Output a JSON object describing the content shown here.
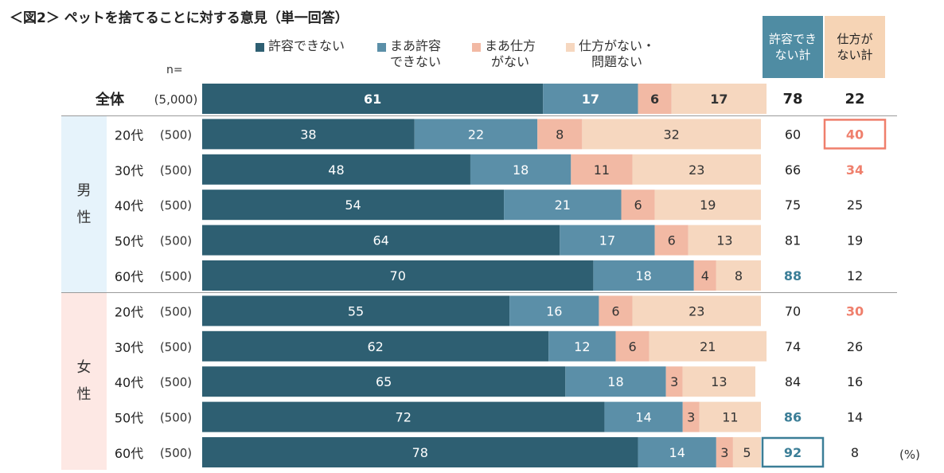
{
  "title": "＜図2＞ ペットを捨てることに対する意見（単一回答）",
  "n_label": "n=",
  "unit": "(%)",
  "colors": {
    "not_ok": "#2e5f72",
    "somewhat_not_ok": "#5b8fa8",
    "somewhat_unavoidable": "#f2b9a4",
    "unavoidable": "#f6d7bf",
    "header_not_ok_bg": "#4f8ca3",
    "header_unavoidable_bg": "#f6d4b5",
    "male_band": "#e6f3fb",
    "female_band": "#fde8e4",
    "highlight_red": "#ef7f6c",
    "highlight_blue": "#3b7e97"
  },
  "legend": [
    {
      "label": "許容できない",
      "color": "#2e5f72"
    },
    {
      "label": "まあ許容\nできない",
      "color": "#5b8fa8"
    },
    {
      "label": "まあ仕方\nがない",
      "color": "#f2b9a4"
    },
    {
      "label": "仕方がない・\n問題ない",
      "color": "#f6d7bf"
    }
  ],
  "column_headers": {
    "not_ok_total": "許容でき\nない計",
    "unavoidable_total": "仕方が\nない計"
  },
  "groups": {
    "male": "男\n性",
    "female": "女\n性"
  },
  "chart_data": {
    "type": "bar",
    "orientation": "horizontal",
    "stacked": true,
    "xlim": [
      0,
      100
    ],
    "series_names": [
      "許容できない",
      "まあ許容できない",
      "まあ仕方がない",
      "仕方がない・問題ない"
    ],
    "rows": [
      {
        "label": "全体",
        "group": "total",
        "n": "(5,000)",
        "values": [
          61,
          17,
          6,
          17
        ],
        "not_ok_total": "78",
        "unavoidable_total": "22",
        "highlight_not_ok": "",
        "highlight_unavoidable": ""
      },
      {
        "label": "20代",
        "group": "male",
        "n": "(500)",
        "values": [
          38,
          22,
          8,
          32
        ],
        "not_ok_total": "60",
        "unavoidable_total": "40",
        "highlight_not_ok": "",
        "highlight_unavoidable": "boxed"
      },
      {
        "label": "30代",
        "group": "male",
        "n": "(500)",
        "values": [
          48,
          18,
          11,
          23
        ],
        "not_ok_total": "66",
        "unavoidable_total": "34",
        "highlight_not_ok": "",
        "highlight_unavoidable": "bold"
      },
      {
        "label": "40代",
        "group": "male",
        "n": "(500)",
        "values": [
          54,
          21,
          6,
          19
        ],
        "not_ok_total": "75",
        "unavoidable_total": "25",
        "highlight_not_ok": "",
        "highlight_unavoidable": ""
      },
      {
        "label": "50代",
        "group": "male",
        "n": "(500)",
        "values": [
          64,
          17,
          6,
          13
        ],
        "not_ok_total": "81",
        "unavoidable_total": "19",
        "highlight_not_ok": "",
        "highlight_unavoidable": ""
      },
      {
        "label": "60代",
        "group": "male",
        "n": "(500)",
        "values": [
          70,
          18,
          4,
          8
        ],
        "not_ok_total": "88",
        "unavoidable_total": "12",
        "highlight_not_ok": "bold",
        "highlight_unavoidable": ""
      },
      {
        "label": "20代",
        "group": "female",
        "n": "(500)",
        "values": [
          55,
          16,
          6,
          23
        ],
        "not_ok_total": "70",
        "unavoidable_total": "30",
        "highlight_not_ok": "",
        "highlight_unavoidable": "bold"
      },
      {
        "label": "30代",
        "group": "female",
        "n": "(500)",
        "values": [
          62,
          12,
          6,
          21
        ],
        "not_ok_total": "74",
        "unavoidable_total": "26",
        "highlight_not_ok": "",
        "highlight_unavoidable": ""
      },
      {
        "label": "40代",
        "group": "female",
        "n": "(500)",
        "values": [
          65,
          18,
          3,
          13
        ],
        "not_ok_total": "84",
        "unavoidable_total": "16",
        "highlight_not_ok": "",
        "highlight_unavoidable": ""
      },
      {
        "label": "50代",
        "group": "female",
        "n": "(500)",
        "values": [
          72,
          14,
          3,
          11
        ],
        "not_ok_total": "86",
        "unavoidable_total": "14",
        "highlight_not_ok": "bold",
        "highlight_unavoidable": ""
      },
      {
        "label": "60代",
        "group": "female",
        "n": "(500)",
        "values": [
          78,
          14,
          3,
          5
        ],
        "not_ok_total": "92",
        "unavoidable_total": "8",
        "highlight_not_ok": "boxed",
        "highlight_unavoidable": ""
      }
    ]
  }
}
